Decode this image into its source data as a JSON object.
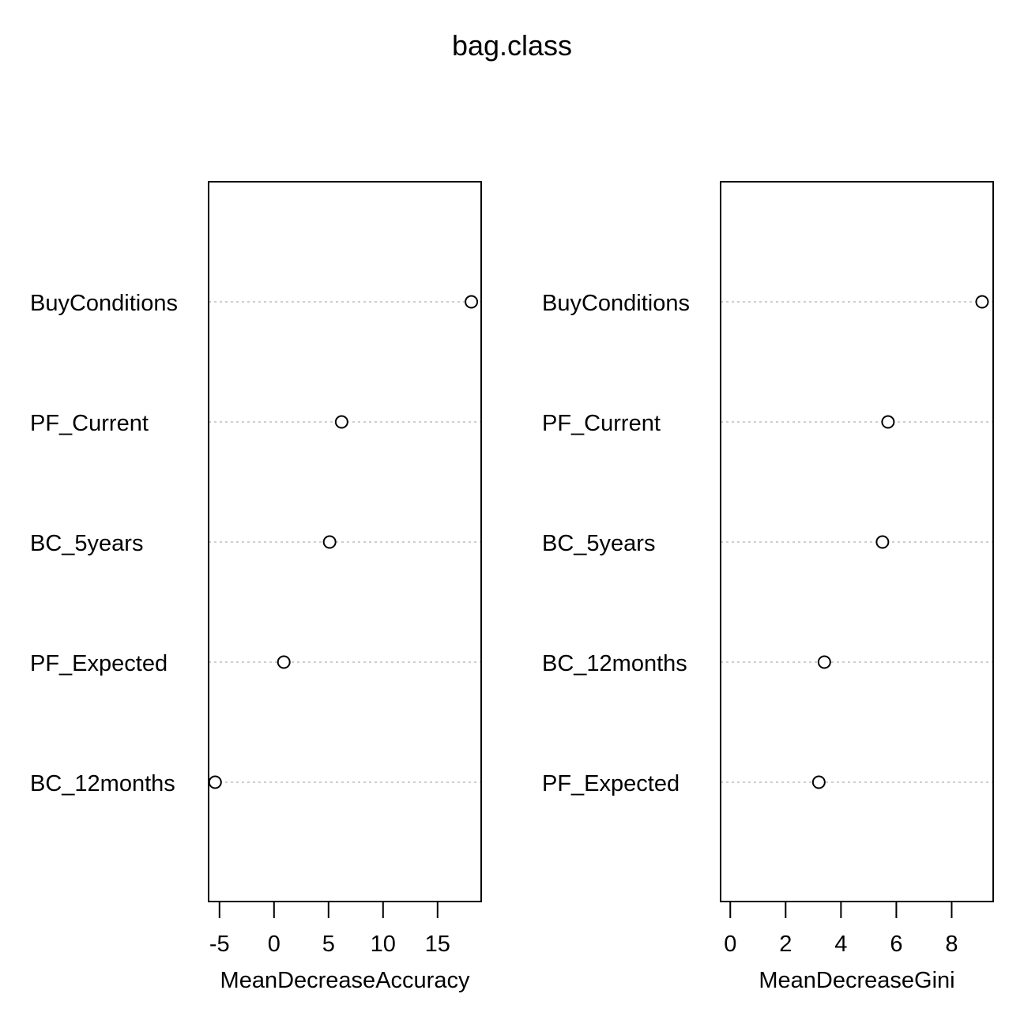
{
  "chart_data": {
    "title": "bag.class",
    "panels": [
      {
        "type": "scatter",
        "subtype": "dotchart",
        "xlabel": "MeanDecreaseAccuracy",
        "xlim": [
          -6.0,
          19.0
        ],
        "xticks": [
          -5,
          0,
          5,
          10,
          15
        ],
        "grid": "dotted horizontal lines",
        "categories": [
          "BuyConditions",
          "PF_Current",
          "BC_5years",
          "PF_Expected",
          "BC_12months"
        ],
        "values": [
          18.1,
          6.2,
          5.1,
          0.9,
          -5.4
        ]
      },
      {
        "type": "scatter",
        "subtype": "dotchart",
        "xlabel": "MeanDecreaseGini",
        "xlim": [
          -0.35,
          9.5
        ],
        "xticks": [
          0,
          2,
          4,
          6,
          8
        ],
        "grid": "dotted horizontal lines",
        "categories": [
          "BuyConditions",
          "PF_Current",
          "BC_5years",
          "BC_12months",
          "PF_Expected"
        ],
        "values": [
          9.1,
          5.7,
          5.5,
          3.4,
          3.2
        ]
      }
    ]
  }
}
